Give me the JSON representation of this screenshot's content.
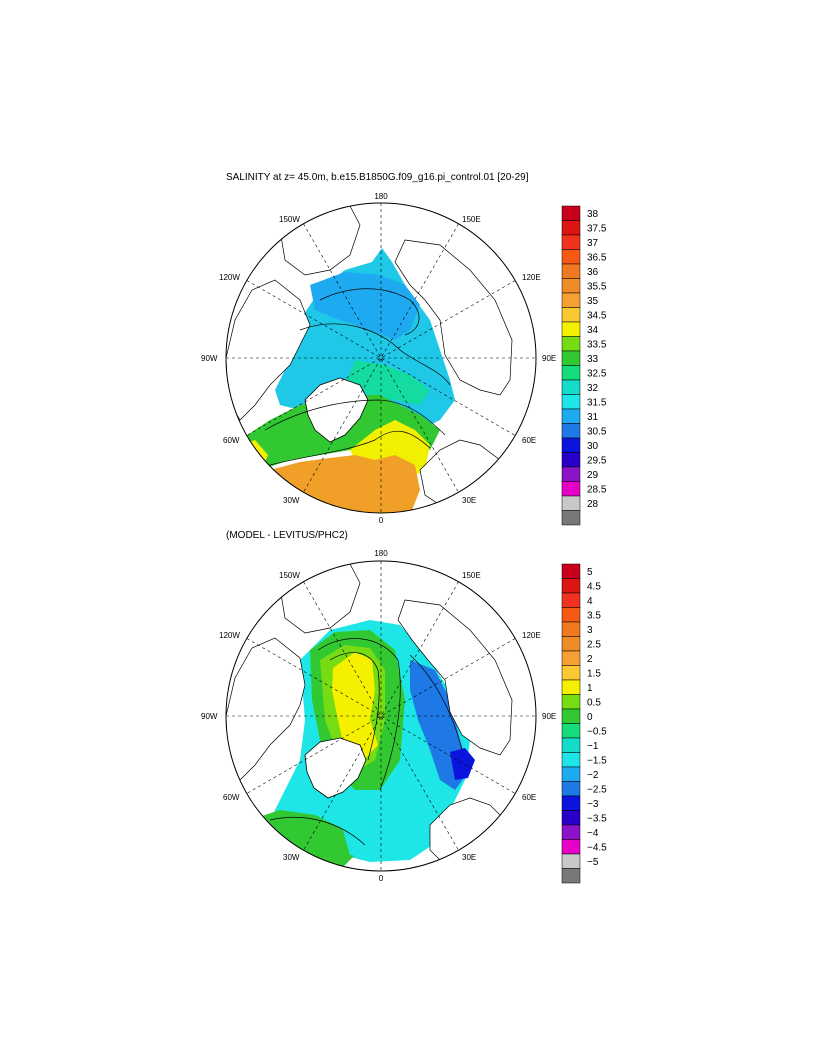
{
  "panel1": {
    "title": "SALINITY at z=  45.0m, b.e15.B1850G.f09_g16.pi_control.01 [20-29]",
    "colorbar": {
      "labels": [
        "38",
        "37.5",
        "37",
        "36.5",
        "36",
        "35.5",
        "35",
        "34.5",
        "34",
        "33.5",
        "33",
        "32.5",
        "32",
        "31.5",
        "31",
        "30.5",
        "30",
        "29.5",
        "29",
        "28.5",
        "28"
      ],
      "colors": [
        "#c8001e",
        "#dc1414",
        "#f0321e",
        "#f55a14",
        "#f0781e",
        "#f08c28",
        "#f5a032",
        "#fac832",
        "#f5f000",
        "#78dc14",
        "#32c832",
        "#14dc78",
        "#14dcc8",
        "#1ee6e6",
        "#1eaaf0",
        "#1e78e6",
        "#0a14dc",
        "#2800c8",
        "#8c14c8",
        "#e600c8",
        "#c8c8c8",
        "#787878"
      ]
    }
  },
  "panel2": {
    "title": "(MODEL - LEVITUS/PHC2)",
    "colorbar": {
      "labels": [
        "5",
        "4.5",
        "4",
        "3.5",
        "3",
        "2.5",
        "2",
        "1.5",
        "1",
        "0.5",
        "0",
        "−0.5",
        "−1",
        "−1.5",
        "−2",
        "−2.5",
        "−3",
        "−3.5",
        "−4",
        "−4.5",
        "−5"
      ],
      "colors": [
        "#c8001e",
        "#dc1414",
        "#f0321e",
        "#f55a14",
        "#f0781e",
        "#f08c28",
        "#f5a032",
        "#fac832",
        "#f5f000",
        "#78dc14",
        "#32c832",
        "#14dc78",
        "#14dcc8",
        "#1ee6e6",
        "#1eaaf0",
        "#1e78e6",
        "#0a14dc",
        "#2800c8",
        "#8c14c8",
        "#e600c8",
        "#c8c8c8",
        "#787878"
      ]
    }
  },
  "map_labels": {
    "top": "180",
    "bottom": "0",
    "left": "90W",
    "right": "90E",
    "upper_left_1": "150W",
    "upper_left_2": "120W",
    "upper_right_1": "150E",
    "upper_right_2": "120E",
    "lower_left_1": "60W",
    "lower_left_2": "30W",
    "lower_right_1": "60E",
    "lower_right_2": "30E"
  }
}
